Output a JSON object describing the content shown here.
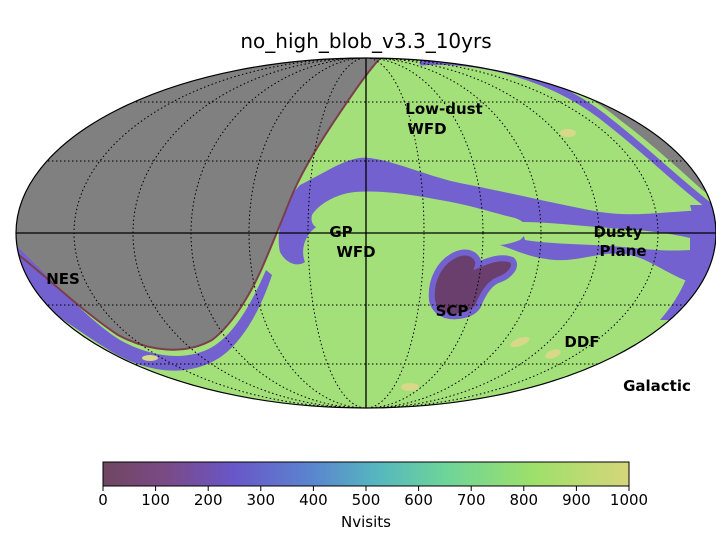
{
  "chart_data": {
    "type": "heatmap",
    "projection": "mollweide",
    "title": "no_high_blob_v3.3_10yrs",
    "frame_label": "Galactic",
    "unobserved_color": "#808080",
    "grid": true,
    "regions": [
      {
        "name": "Low-dust",
        "line2": "WFD",
        "approx_nvisits": 800
      },
      {
        "name": "GP",
        "line2": "WFD",
        "approx_nvisits": 800
      },
      {
        "name": "Dusty",
        "line2": "Plane",
        "approx_nvisits": 250
      },
      {
        "name": "NES",
        "line2": "",
        "approx_nvisits": 250
      },
      {
        "name": "SCP",
        "line2": "",
        "approx_nvisits": 100
      },
      {
        "name": "DDF",
        "line2": "",
        "approx_nvisits": 950
      }
    ],
    "colorbar": {
      "label": "Nvisits",
      "range": [
        0,
        1000
      ],
      "ticks": [
        "0",
        "100",
        "200",
        "300",
        "400",
        "500",
        "600",
        "700",
        "800",
        "900",
        "1000"
      ],
      "colormap": [
        "#6f4660",
        "#7a4a86",
        "#6957c9",
        "#5a86cf",
        "#56b6bf",
        "#6dd49a",
        "#9ee06a",
        "#d6d67a"
      ]
    }
  }
}
